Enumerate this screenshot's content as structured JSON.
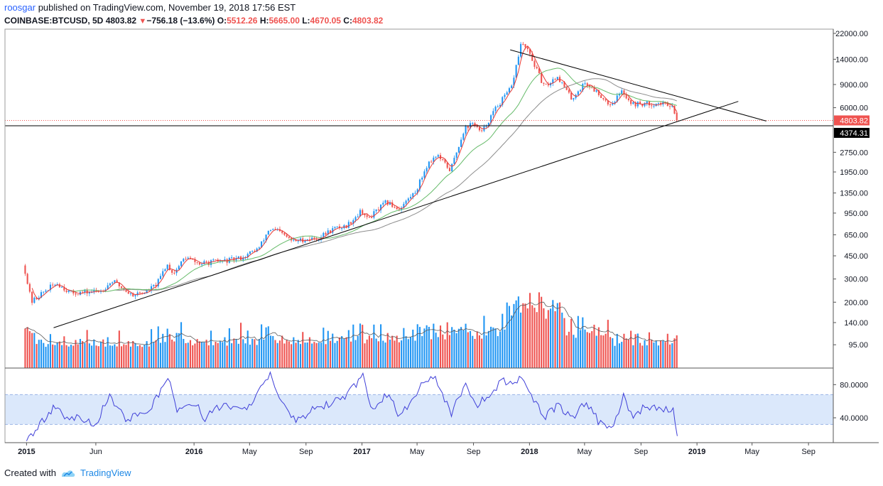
{
  "header": {
    "author": "roosgar",
    "published_text": "published on TradingView.com, November 19, 2018 17:56 EST",
    "symbol": "COINBASE:BTCUSD, 5D",
    "last": "4803.82",
    "change": "−756.18 (−13.6%)",
    "open_label": "O:",
    "open": "5512.26",
    "high_label": "H:",
    "high": "5665.00",
    "low_label": "L:",
    "low": "4670.05",
    "close_label": "C:",
    "close": "4803.82"
  },
  "footer": {
    "created_with": "Created with",
    "brand": "TradingView"
  },
  "colors": {
    "up": "#2196f3",
    "down": "#ef5350",
    "sma_short": "#e53935",
    "sma_mid": "#66bb6a",
    "sma_long": "#8d8d8d",
    "rsi": "#3f3fd8",
    "rsi_band": "#dbe8fb",
    "trendline": "#000000"
  },
  "chart_data": {
    "type": "candlestick",
    "price_scale": "log",
    "price_axis_ticks": [
      "22000.00",
      "14000.00",
      "9000.00",
      "6000.00",
      "4374.31",
      "2750.00",
      "1950.00",
      "1350.00",
      "950.00",
      "650.00",
      "450.00",
      "300.00",
      "200.00",
      "140.00",
      "95.00"
    ],
    "last_price_label": "4803.82",
    "hline_label": "4374.31",
    "rsi_axis_ticks": [
      "80.0000",
      "40.0000"
    ],
    "x_ticks": [
      "2015",
      "Jun",
      "2016",
      "May",
      "Sep",
      "2017",
      "May",
      "Sep",
      "2018",
      "May",
      "Sep",
      "2019",
      "May",
      "Sep"
    ],
    "price_path": [
      [
        "2014-12-29",
        380
      ],
      [
        "2015-01-14",
        200
      ],
      [
        "2015-02-10",
        240
      ],
      [
        "2015-03-10",
        280
      ],
      [
        "2015-04-10",
        235
      ],
      [
        "2015-05-20",
        238
      ],
      [
        "2015-06-15",
        245
      ],
      [
        "2015-07-10",
        290
      ],
      [
        "2015-08-20",
        228
      ],
      [
        "2015-09-20",
        238
      ],
      [
        "2015-10-15",
        275
      ],
      [
        "2015-11-05",
        390
      ],
      [
        "2015-11-20",
        330
      ],
      [
        "2015-12-15",
        440
      ],
      [
        "2016-01-15",
        390
      ],
      [
        "2016-02-15",
        405
      ],
      [
        "2016-03-20",
        415
      ],
      [
        "2016-04-20",
        440
      ],
      [
        "2016-05-25",
        520
      ],
      [
        "2016-06-15",
        720
      ],
      [
        "2016-07-05",
        690
      ],
      [
        "2016-08-05",
        580
      ],
      [
        "2016-09-01",
        600
      ],
      [
        "2016-10-01",
        615
      ],
      [
        "2016-11-01",
        720
      ],
      [
        "2016-12-01",
        760
      ],
      [
        "2017-01-03",
        1000
      ],
      [
        "2017-01-15",
        850
      ],
      [
        "2017-02-25",
        1150
      ],
      [
        "2017-03-25",
        1020
      ],
      [
        "2017-05-01",
        1400
      ],
      [
        "2017-05-25",
        2200
      ],
      [
        "2017-06-15",
        2650
      ],
      [
        "2017-07-15",
        2000
      ],
      [
        "2017-08-15",
        4200
      ],
      [
        "2017-09-05",
        4600
      ],
      [
        "2017-09-20",
        3800
      ],
      [
        "2017-10-20",
        5800
      ],
      [
        "2017-11-25",
        8500
      ],
      [
        "2017-12-17",
        19000
      ],
      [
        "2018-01-05",
        15000
      ],
      [
        "2018-02-05",
        8500
      ],
      [
        "2018-03-05",
        10500
      ],
      [
        "2018-04-05",
        7000
      ],
      [
        "2018-05-05",
        9300
      ],
      [
        "2018-06-05",
        7600
      ],
      [
        "2018-06-28",
        6300
      ],
      [
        "2018-07-25",
        8000
      ],
      [
        "2018-08-15",
        6400
      ],
      [
        "2018-09-10",
        6400
      ],
      [
        "2018-10-15",
        6450
      ],
      [
        "2018-11-10",
        6350
      ],
      [
        "2018-11-19",
        4803.82
      ]
    ],
    "hlines": [
      4374.31,
      4803.82
    ],
    "trendlines": [
      {
        "from": [
          "2015-03-01",
          128
        ],
        "to": [
          "2019-04-01",
          6700
        ]
      },
      {
        "from": [
          "2017-11-20",
          16500
        ],
        "to": [
          "2019-06-01",
          4750
        ]
      }
    ],
    "volume_range": [
      0,
      300
    ],
    "rsi_range": [
      10,
      100
    ],
    "rsi_band": [
      32,
      68
    ],
    "rsi_path": [
      [
        "2015-01-01",
        12
      ],
      [
        "2015-01-25",
        28
      ],
      [
        "2015-03-05",
        55
      ],
      [
        "2015-03-25",
        38
      ],
      [
        "2015-05-01",
        40
      ],
      [
        "2015-06-01",
        32
      ],
      [
        "2015-07-01",
        68
      ],
      [
        "2015-08-05",
        38
      ],
      [
        "2015-10-01",
        52
      ],
      [
        "2015-11-05",
        90
      ],
      [
        "2015-11-25",
        50
      ],
      [
        "2016-01-01",
        58
      ],
      [
        "2016-01-25",
        40
      ],
      [
        "2016-03-01",
        55
      ],
      [
        "2016-04-15",
        48
      ],
      [
        "2016-05-15",
        66
      ],
      [
        "2016-06-15",
        92
      ],
      [
        "2016-07-05",
        62
      ],
      [
        "2016-08-10",
        34
      ],
      [
        "2016-09-10",
        48
      ],
      [
        "2016-10-10",
        55
      ],
      [
        "2016-11-20",
        62
      ],
      [
        "2017-01-03",
        90
      ],
      [
        "2017-01-20",
        50
      ],
      [
        "2017-03-01",
        70
      ],
      [
        "2017-03-25",
        40
      ],
      [
        "2017-05-10",
        80
      ],
      [
        "2017-06-10",
        88
      ],
      [
        "2017-07-15",
        45
      ],
      [
        "2017-08-15",
        82
      ],
      [
        "2017-09-10",
        55
      ],
      [
        "2017-10-10",
        70
      ],
      [
        "2017-11-01",
        85
      ],
      [
        "2017-11-25",
        78
      ],
      [
        "2017-12-15",
        92
      ],
      [
        "2018-01-05",
        65
      ],
      [
        "2018-02-05",
        42
      ],
      [
        "2018-03-05",
        55
      ],
      [
        "2018-04-05",
        40
      ],
      [
        "2018-05-05",
        60
      ],
      [
        "2018-06-05",
        32
      ],
      [
        "2018-06-28",
        24
      ],
      [
        "2018-07-25",
        66
      ],
      [
        "2018-08-15",
        40
      ],
      [
        "2018-09-10",
        55
      ],
      [
        "2018-10-15",
        48
      ],
      [
        "2018-11-10",
        50
      ],
      [
        "2018-11-19",
        18
      ]
    ]
  }
}
